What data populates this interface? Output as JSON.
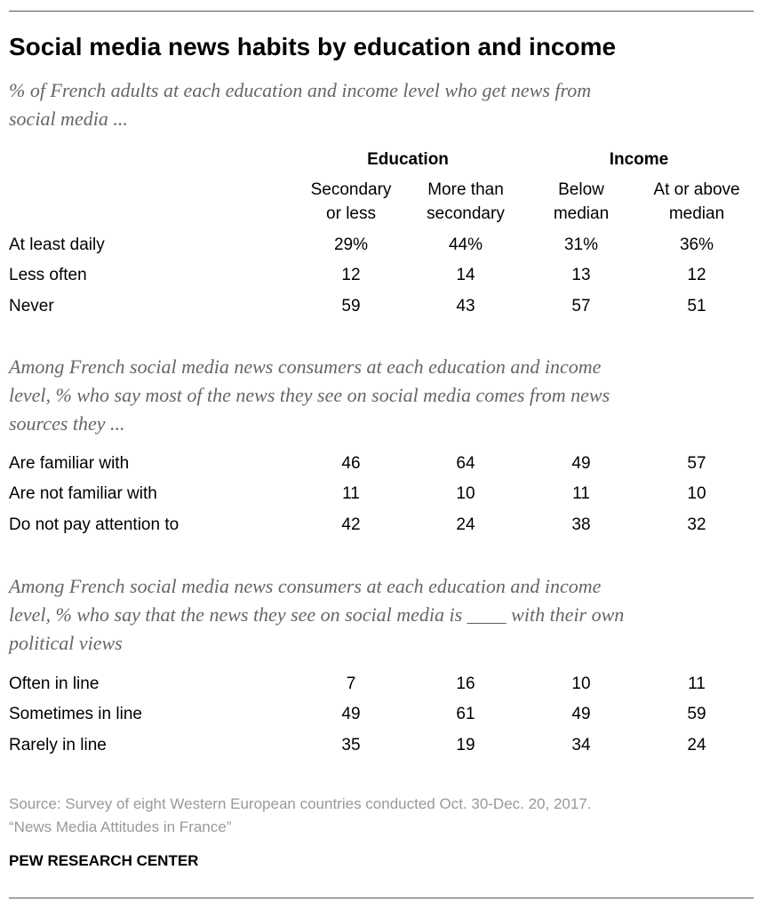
{
  "header": {
    "title": "Social media news habits by education and income",
    "subtitle": [
      "% of French adults at each education and income level who get news from",
      "social media ..."
    ]
  },
  "table": {
    "groups": [
      "Education",
      "Income"
    ],
    "columns": [
      [
        "Secondary",
        "or less"
      ],
      [
        "More than",
        "secondary"
      ],
      [
        "Below",
        "median"
      ],
      [
        "At or above",
        "median"
      ]
    ],
    "sections": [
      {
        "rows": [
          {
            "label": "At least daily",
            "values": [
              "29%",
              "44%",
              "31%",
              "36%"
            ]
          },
          {
            "label": "Less often",
            "values": [
              "12",
              "14",
              "13",
              "12"
            ]
          },
          {
            "label": "Never",
            "values": [
              "59",
              "43",
              "57",
              "51"
            ]
          }
        ]
      },
      {
        "intro": [
          "Among French social media news consumers at each education and income",
          "level, % who say most of the news they see on social media comes from news",
          "sources they ..."
        ],
        "rows": [
          {
            "label": "Are familiar with",
            "values": [
              "46",
              "64",
              "49",
              "57"
            ]
          },
          {
            "label": "Are not familiar with",
            "values": [
              "11",
              "10",
              "11",
              "10"
            ]
          },
          {
            "label": "Do not pay attention to",
            "values": [
              "42",
              "24",
              "38",
              "32"
            ]
          }
        ]
      },
      {
        "intro": [
          "Among French social media news consumers at each education and income",
          "level, % who say that the news they see on social media is ____ with their own",
          "political views"
        ],
        "rows": [
          {
            "label": "Often in line",
            "values": [
              "7",
              "16",
              "10",
              "11"
            ]
          },
          {
            "label": "Sometimes in line",
            "values": [
              "49",
              "61",
              "49",
              "59"
            ]
          },
          {
            "label": "Rarely in line",
            "values": [
              "35",
              "19",
              "34",
              "24"
            ]
          }
        ]
      }
    ]
  },
  "footer": {
    "source": [
      "Source: Survey of eight Western European countries conducted Oct. 30-Dec. 20, 2017.",
      "“News Media Attitudes in France”"
    ],
    "org": "PEW RESEARCH CENTER"
  }
}
